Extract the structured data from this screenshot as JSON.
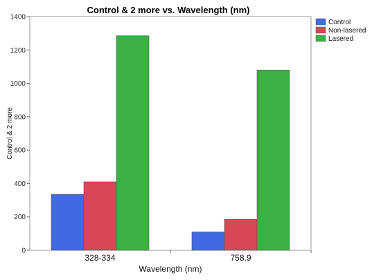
{
  "chart_data": {
    "type": "bar",
    "title": "Control & 2 more vs. Wavelength (nm)",
    "xlabel": "Wavelength (nm)",
    "ylabel": "Control & 2 more",
    "categories": [
      "328-334",
      "758.9"
    ],
    "series": [
      {
        "name": "Control",
        "values": [
          335,
          110
        ],
        "color": "#4169e1"
      },
      {
        "name": "Non-lasered",
        "values": [
          410,
          185
        ],
        "color": "#d94655"
      },
      {
        "name": "Lasered",
        "values": [
          1285,
          1080
        ],
        "color": "#3cb043"
      }
    ],
    "ylim": [
      0,
      1400
    ],
    "yticks": [
      0,
      200,
      400,
      600,
      800,
      1000,
      1200,
      1400
    ],
    "legend_position": "right",
    "grid": false
  }
}
